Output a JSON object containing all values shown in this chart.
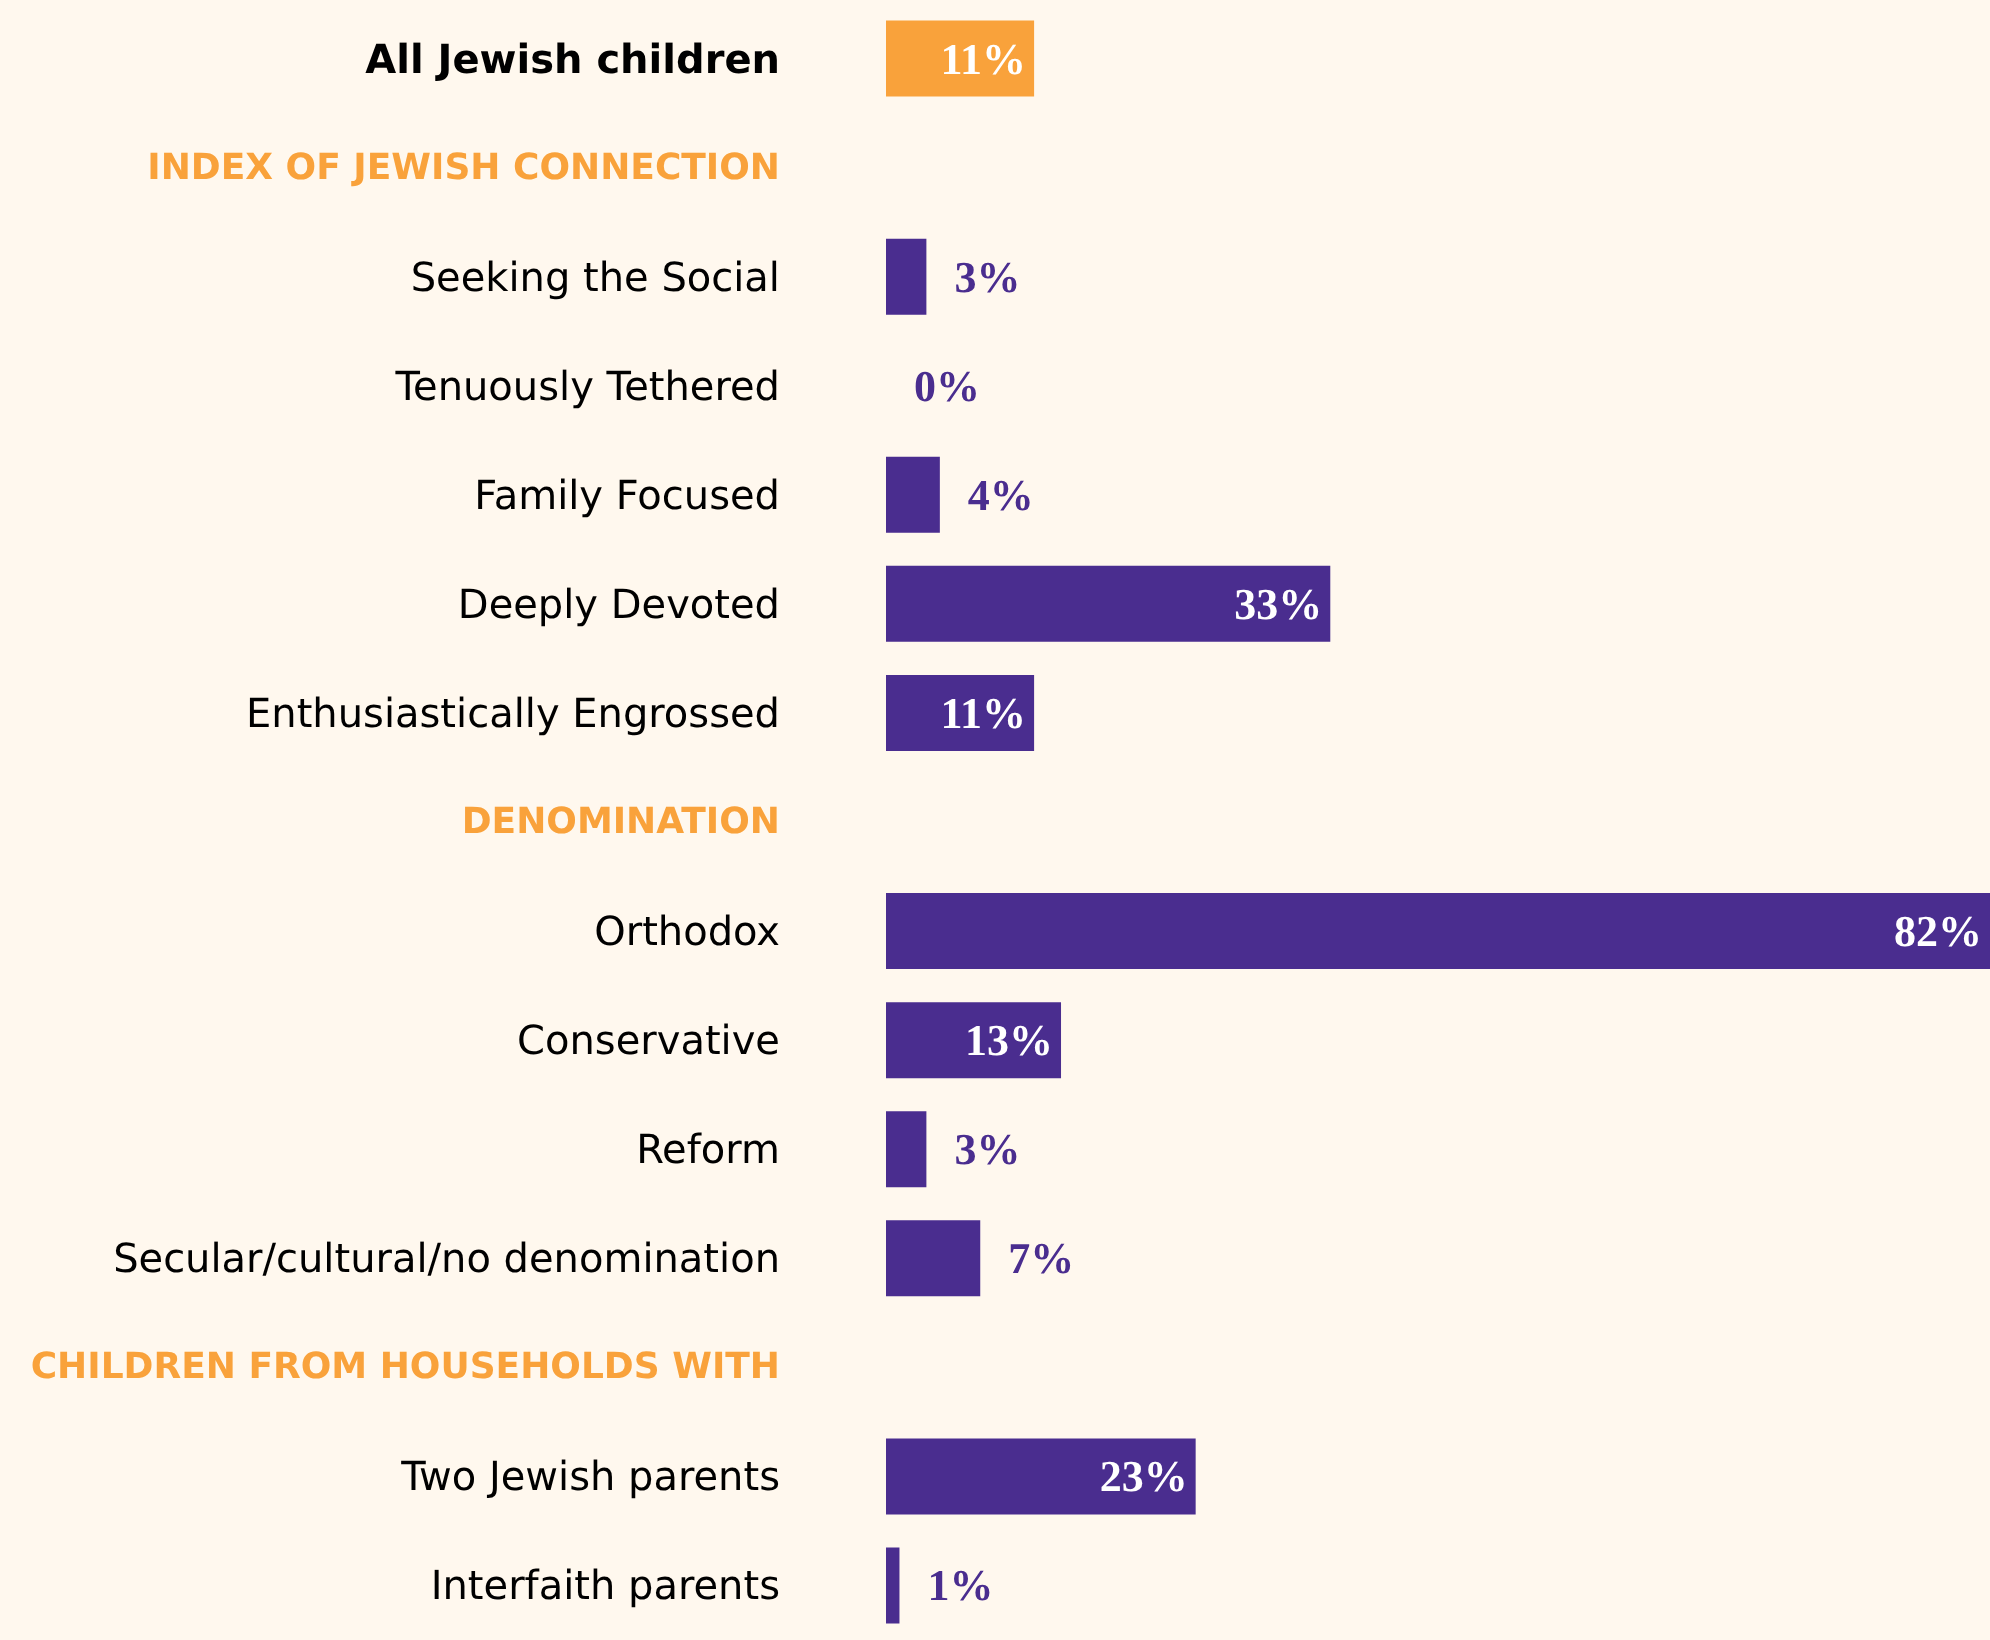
{
  "chart_data": {
    "type": "bar",
    "orientation": "horizontal",
    "categories": [
      "All Jewish children",
      "INDEX OF JEWISH CONNECTION",
      "Seeking the Social",
      "Tenuously Tethered",
      "Family Focused",
      "Deeply Devoted",
      "Enthusiastically Engrossed",
      "DENOMINATION",
      "Orthodox",
      "Conservative",
      "Reform",
      "Secular/cultural/no denomination",
      "CHILDREN FROM HOUSEHOLDS WITH",
      "Two Jewish parents",
      "Interfaith parents"
    ],
    "values": [
      11,
      null,
      3,
      0,
      4,
      33,
      11,
      null,
      82,
      13,
      3,
      7,
      null,
      23,
      1
    ],
    "value_labels": [
      "11%",
      null,
      "3%",
      "0%",
      "4%",
      "33%",
      "11%",
      null,
      "82%",
      "13%",
      "3%",
      "7%",
      null,
      "23%",
      "1%"
    ],
    "colors": [
      "#f9a23b",
      "#f9a23b",
      "#4a2d8f",
      "#4a2d8f",
      "#4a2d8f",
      "#4a2d8f",
      "#4a2d8f",
      "#f9a23b",
      "#4a2d8f",
      "#4a2d8f",
      "#4a2d8f",
      "#4a2d8f",
      "#f9a23b",
      "#4a2d8f",
      "#4a2d8f"
    ]
  }
}
